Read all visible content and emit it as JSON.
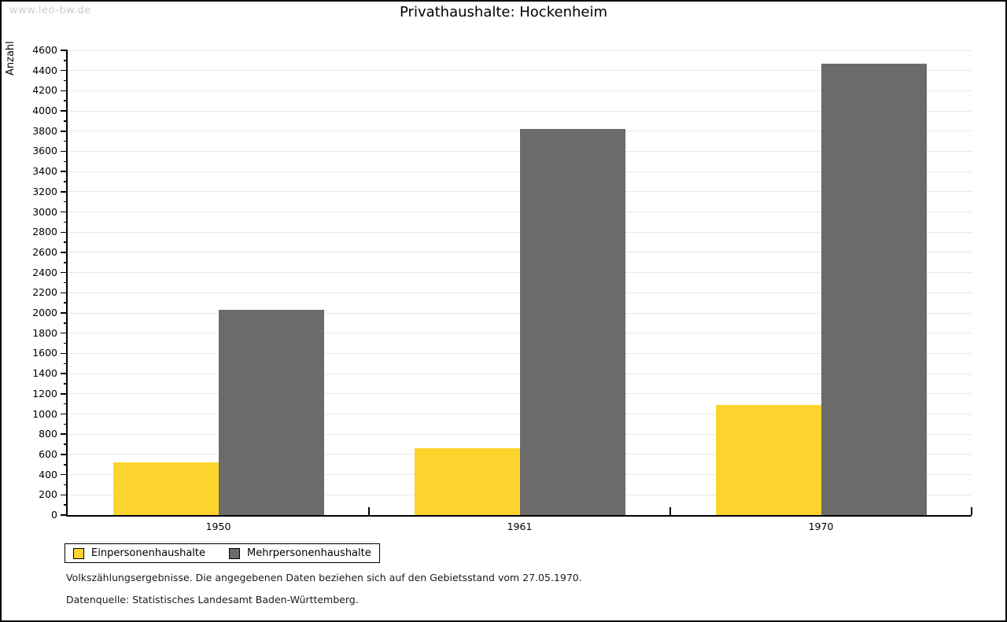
{
  "watermark": "www.leo-bw.de",
  "chart_data": {
    "type": "bar",
    "title": "Privathaushalte: Hockenheim",
    "xlabel": "",
    "ylabel": "Anzahl",
    "categories": [
      "1950",
      "1961",
      "1970"
    ],
    "series": [
      {
        "name": "Einpersonenhaushalte",
        "color": "#FDD32E",
        "values": [
          520,
          660,
          1090
        ]
      },
      {
        "name": "Mehrpersonenhaushalte",
        "color": "#6B6B6B",
        "values": [
          2030,
          3820,
          4470
        ]
      }
    ],
    "ylim": [
      0,
      4600
    ],
    "ytick_step": 200,
    "minor_tick_step": 100,
    "grid": true,
    "gridline_color": "#e8e8e8",
    "legend_position": "bottom-left"
  },
  "footer": {
    "line1": "Volkszählungsergebnisse. Die angegebenen Daten beziehen sich auf den Gebietsstand vom 27.05.1970.",
    "line2": "Datenquelle: Statistisches Landesamt Baden-Württemberg."
  }
}
